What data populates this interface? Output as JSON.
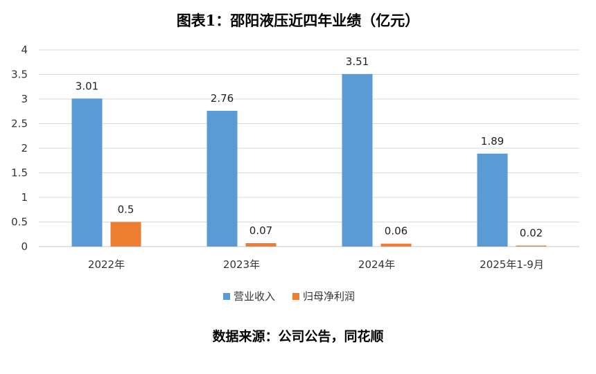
{
  "chart_data": {
    "type": "bar",
    "title": "图表1：邵阳液压近四年业绩（亿元）",
    "categories": [
      "2022年",
      "2023年",
      "2024年",
      "2025年1-9月"
    ],
    "series": [
      {
        "name": "营业收入",
        "values": [
          3.01,
          2.76,
          3.51,
          1.89
        ],
        "labels": [
          "3.01",
          "2.76",
          "3.51",
          "1.89"
        ],
        "color": "#5B9BD5"
      },
      {
        "name": "归母净利润",
        "values": [
          0.5,
          0.07,
          0.06,
          0.02
        ],
        "labels": [
          "0.5",
          "0.07",
          "0.06",
          "0.02"
        ],
        "color": "#ED7D31"
      }
    ],
    "yticks": [
      "0",
      "0.5",
      "1",
      "1.5",
      "2",
      "2.5",
      "3",
      "3.5",
      "4"
    ],
    "ylim": [
      0,
      4
    ],
    "grid": true,
    "legend_position": "bottom"
  },
  "source_text": "数据来源：公司公告，同花顺"
}
